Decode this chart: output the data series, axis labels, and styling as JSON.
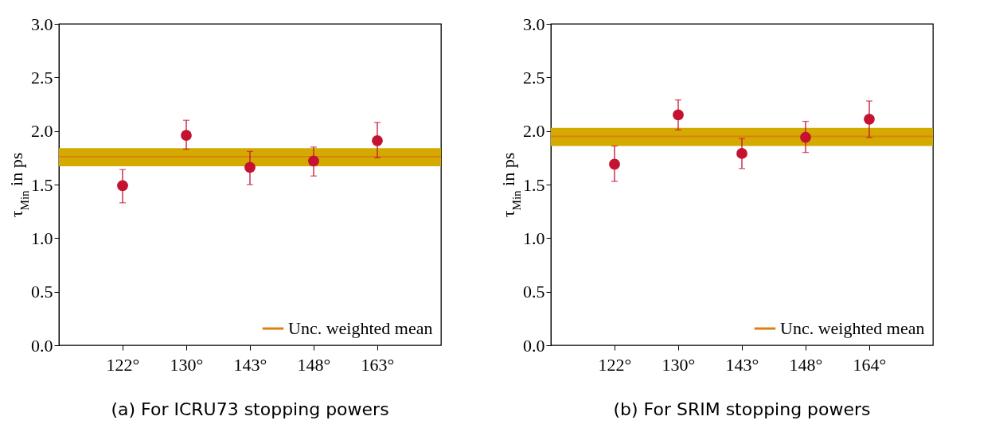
{
  "chart_data": [
    {
      "type": "scatter",
      "title": "(a) For ICRU73 stopping powers",
      "ylabel": "τ$_{Min}$ in ps",
      "categories": [
        "122°",
        "130°",
        "143°",
        "148°",
        "163°"
      ],
      "series": [
        {
          "color": "#c41230",
          "values": [
            1.49,
            1.96,
            1.66,
            1.72,
            1.91
          ],
          "errors": [
            [
              1.33,
              1.64
            ],
            [
              1.83,
              2.1
            ],
            [
              1.5,
              1.81
            ],
            [
              1.58,
              1.85
            ],
            [
              1.75,
              2.08
            ]
          ]
        }
      ],
      "ref_lines": [
        {
          "axis": "y",
          "value": 1.76,
          "label": "Unc. weighted mean",
          "color": "#d9820f"
        }
      ],
      "bands": [
        {
          "axis": "y",
          "from": 1.67,
          "to": 1.84,
          "color": "#d4aa00"
        }
      ],
      "ylim": [
        0,
        3
      ],
      "yticks": [
        {
          "value": 0,
          "label": "0.0"
        },
        0.5,
        {
          "value": 1,
          "label": "1.0"
        },
        1.5,
        {
          "value": 2,
          "label": "2.0"
        },
        2.5,
        {
          "value": 3,
          "label": "3.0"
        }
      ],
      "marker": "circle",
      "legend": "bottom right",
      "grid": false
    },
    {
      "type": "scatter",
      "title": "(b) For SRIM stopping powers",
      "ylabel": "τ$_{Min}$ in ps",
      "categories": [
        "122°",
        "130°",
        "143°",
        "148°",
        "164°"
      ],
      "series": [
        {
          "color": "#c41230",
          "values": [
            1.69,
            2.15,
            1.79,
            1.94,
            2.11
          ],
          "errors": [
            [
              1.53,
              1.86
            ],
            [
              2.01,
              2.29
            ],
            [
              1.65,
              1.93
            ],
            [
              1.8,
              2.09
            ],
            [
              1.94,
              2.28
            ]
          ]
        }
      ],
      "ref_lines": [
        {
          "axis": "y",
          "value": 1.95,
          "label": "Unc. weighted mean",
          "color": "#d9820f"
        }
      ],
      "bands": [
        {
          "axis": "y",
          "from": 1.86,
          "to": 2.03,
          "color": "#d4aa00"
        }
      ],
      "ylim": [
        0,
        3
      ],
      "yticks": [
        {
          "value": 0,
          "label": "0.0"
        },
        0.5,
        {
          "value": 1,
          "label": "1.0"
        },
        1.5,
        {
          "value": 2,
          "label": "2.0"
        },
        2.5,
        {
          "value": 3,
          "label": "3.0"
        }
      ],
      "marker": "circle",
      "legend": "bottom right",
      "grid": false
    }
  ]
}
